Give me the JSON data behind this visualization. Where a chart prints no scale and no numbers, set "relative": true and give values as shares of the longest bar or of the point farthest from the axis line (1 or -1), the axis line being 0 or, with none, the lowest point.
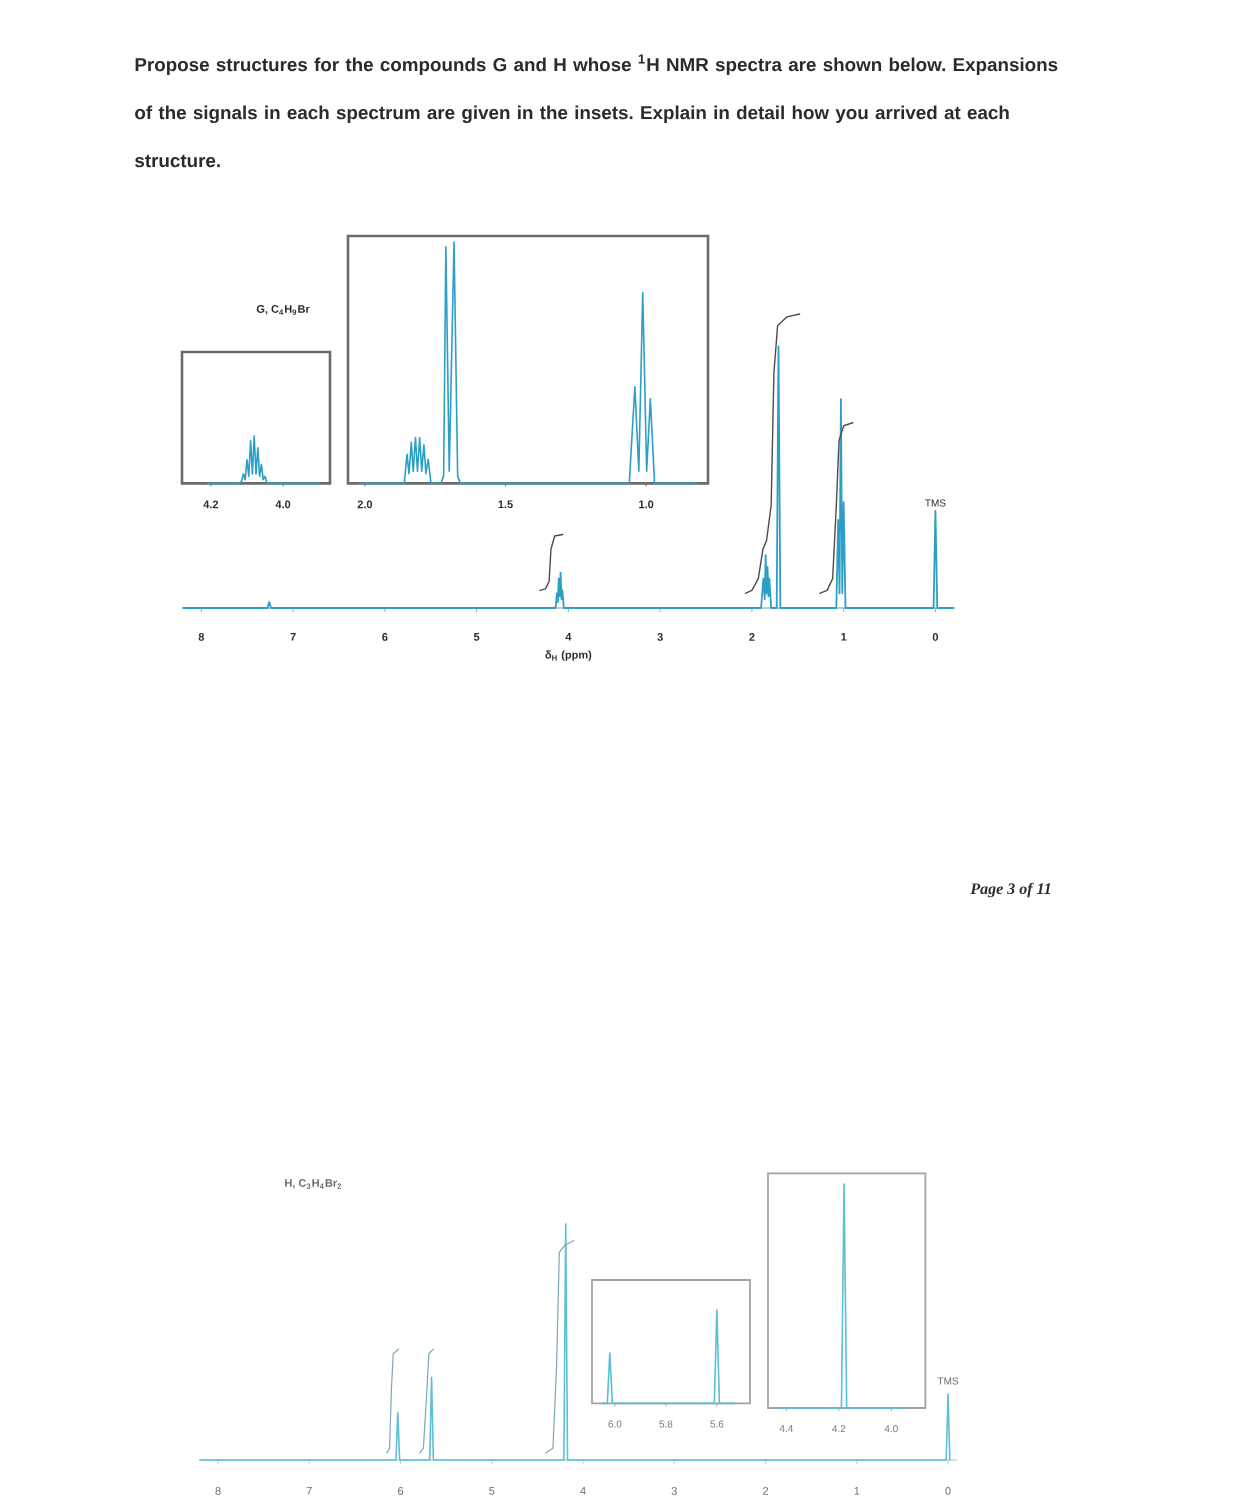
{
  "chart_data": [
    {
      "type": "line",
      "title": "Propose structures for the compounds G and H whose $^{1}$H NMR spectra are shown below. Expansions of the signals in each spectrum are given in the insets. Explain in detail how you arrived at each structure.",
      "xlabel": "δ$_{H}$ (ppm)",
      "relative": true,
      "xlim": [
        8.2,
        -0.2
      ],
      "xticks": [
        8,
        7,
        6,
        5,
        4,
        3,
        2,
        1,
        0
      ],
      "annotations": [
        {
          "text": "TMS",
          "x": 0,
          "y": 0.33
        },
        "G, C$_{4}$H$_{9}$Br",
        "Page 3 of 11"
      ],
      "series": [
        {
          "color": "#2d9fc6",
          "x": [
            8.2,
            7.28,
            7.26,
            7.24,
            4.14,
            4.125,
            4.115,
            4.105,
            4.095,
            4.085,
            4.075,
            4.065,
            4.05,
            1.9,
            1.875,
            1.86,
            1.85,
            1.84,
            1.83,
            1.82,
            1.81,
            1.79,
            1.73,
            1.71,
            1.69,
            1.08,
            1.06,
            1.045,
            1.03,
            1.015,
            1.0,
            0.98,
            0.02,
            0,
            -0.02,
            -0.2
          ],
          "values": [
            0,
            0,
            0.02,
            0,
            0,
            0.05,
            0.02,
            0.1,
            0.04,
            0.12,
            0.03,
            0.06,
            0,
            0,
            0.1,
            0.03,
            0.18,
            0.05,
            0.14,
            0.04,
            0.1,
            0,
            0,
            0.89,
            0,
            0,
            0.3,
            0.05,
            0.71,
            0.05,
            0.36,
            0,
            0,
            0.33,
            0,
            0
          ]
        },
        {
          "color": "#4d4d4d",
          "x": [
            4.31,
            4.25,
            4.21,
            4.19,
            4.15,
            4.06
          ],
          "values": [
            0.06,
            0.065,
            0.09,
            0.2,
            0.245,
            0.25
          ]
        },
        {
          "color": "#4d4d4d",
          "x": [
            2.07,
            2.0,
            1.93,
            1.88,
            1.84,
            1.79,
            1.76,
            1.72,
            1.62,
            1.48
          ],
          "values": [
            0.05,
            0.06,
            0.1,
            0.2,
            0.23,
            0.35,
            0.8,
            0.96,
            0.99,
            1.0
          ]
        },
        {
          "color": "#4d4d4d",
          "x": [
            1.26,
            1.18,
            1.12,
            1.08,
            1.05,
            1.0,
            0.9
          ],
          "values": [
            0.05,
            0.06,
            0.1,
            0.35,
            0.57,
            0.62,
            0.63
          ]
        }
      ]
    },
    {
      "type": "line",
      "relative": true,
      "xlim": [
        4.28,
        3.87
      ],
      "xticks": [
        4.2,
        {
          "value": 4,
          "label": "4.0"
        }
      ],
      "series": [
        {
          "color": "#2d9fc6",
          "x": [
            4.21,
            4.12,
            4.115,
            4.11,
            4.105,
            4.1,
            4.095,
            4.09,
            4.085,
            4.08,
            4.075,
            4.07,
            4.065,
            4.06,
            4.055,
            4.05,
            4.045,
            4.04,
            3.9
          ],
          "values": [
            0,
            0,
            0.05,
            0.2,
            0.08,
            0.5,
            0.15,
            0.9,
            0.2,
            1.0,
            0.2,
            0.75,
            0.15,
            0.4,
            0.08,
            0.15,
            0.02,
            0,
            0
          ]
        }
      ]
    },
    {
      "type": "line",
      "relative": true,
      "xlim": [
        2.06,
        0.78
      ],
      "xticks": [
        {
          "value": 2,
          "label": "2.0"
        },
        1.5,
        {
          "value": 1,
          "label": "1.0"
        }
      ],
      "series": [
        {
          "color": "#2d9fc6",
          "x": [
            2.02,
            1.86,
            1.85,
            1.843,
            1.835,
            1.828,
            1.82,
            1.813,
            1.805,
            1.798,
            1.79,
            1.783,
            1.775,
            1.765,
            1.73,
            1.72,
            1.712,
            1.7,
            1.683,
            1.67,
            1.66,
            1.06,
            1.04,
            1.026,
            1.012,
            0.998,
            0.985,
            0.97,
            0.82
          ],
          "values": [
            0,
            0,
            0.12,
            0.04,
            0.17,
            0.05,
            0.19,
            0.05,
            0.19,
            0.05,
            0.16,
            0.04,
            0.1,
            0,
            0,
            0.03,
            0.98,
            0.05,
            1.0,
            0.03,
            0,
            0,
            0.4,
            0.05,
            0.79,
            0.05,
            0.35,
            0,
            0
          ]
        }
      ]
    },
    {
      "type": "line",
      "relative": true,
      "xlim": [
        8.2,
        -0.1
      ],
      "xticks": [
        8,
        7,
        6,
        5,
        4,
        3,
        2,
        1,
        0
      ],
      "annotations": [
        {
          "text": "TMS",
          "x": 0,
          "y": 0.28
        },
        "H, C$_{3}$H$_{4}$Br$_{2}$"
      ],
      "series": [
        {
          "color": "#5bbfd6",
          "x": [
            8.2,
            6.05,
            6.03,
            6.01,
            5.68,
            5.66,
            5.64,
            4.21,
            4.19,
            4.17,
            0.02,
            0,
            -0.02
          ],
          "values": [
            0,
            0,
            0.2,
            0,
            0,
            0.35,
            0,
            0,
            1.0,
            0,
            0,
            0.28,
            0
          ]
        },
        {
          "color": "#7da7b3",
          "x": [
            6.15,
            6.12,
            6.1,
            6.08,
            6.02
          ],
          "values": [
            0.03,
            0.05,
            0.3,
            0.45,
            0.47
          ]
        },
        {
          "color": "#7da7b3",
          "x": [
            5.79,
            5.75,
            5.71,
            5.69,
            5.64
          ],
          "values": [
            0.03,
            0.05,
            0.3,
            0.45,
            0.47
          ]
        },
        {
          "color": "#7da7b3",
          "x": [
            4.41,
            4.33,
            4.29,
            4.26,
            4.2,
            4.1
          ],
          "values": [
            0.03,
            0.05,
            0.4,
            0.88,
            0.91,
            0.93
          ]
        }
      ]
    },
    {
      "type": "line",
      "relative": true,
      "xlim": [
        6.09,
        5.47
      ],
      "xticks": [
        {
          "value": 6,
          "label": "6.0"
        },
        5.8,
        5.6
      ],
      "series": [
        {
          "color": "#5bbfd6",
          "x": [
            6.05,
            6.03,
            6.02,
            6.01,
            5.61,
            5.6,
            5.59,
            5.53
          ],
          "values": [
            0,
            0,
            0.54,
            0,
            0,
            1.0,
            0,
            0
          ]
        }
      ]
    },
    {
      "type": "line",
      "relative": true,
      "xlim": [
        4.47,
        3.87
      ],
      "xticks": [
        4.4,
        4.2,
        {
          "value": 4,
          "label": "4.0"
        }
      ],
      "series": [
        {
          "color": "#5bbfd6",
          "x": [
            4.43,
            4.19,
            4.18,
            4.17,
            3.95
          ],
          "values": [
            0,
            0,
            1.0,
            0,
            0
          ]
        }
      ]
    }
  ]
}
